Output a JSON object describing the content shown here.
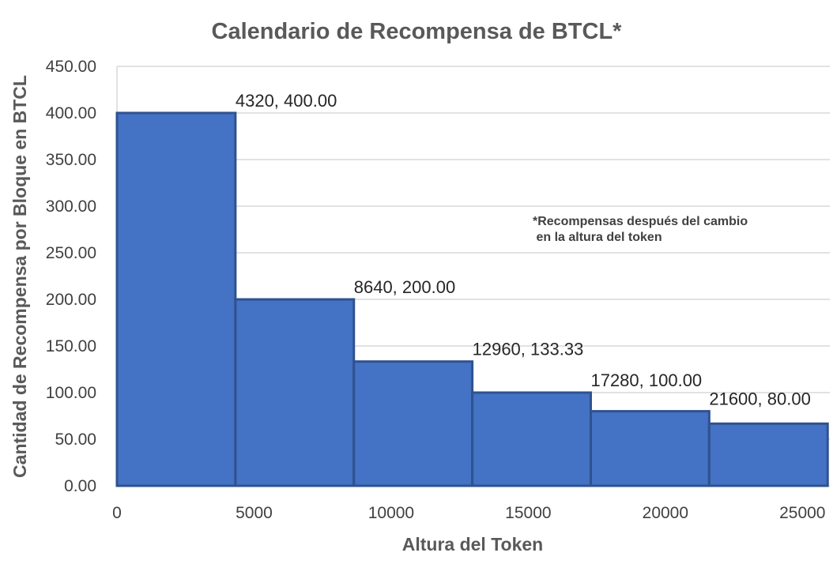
{
  "chart_data": {
    "type": "bar",
    "title": "Calendario de Recompensa de BTCL*",
    "xlabel": "Altura del Token",
    "ylabel": "Cantidad de Recompensa por Bloque en BTCL",
    "xlim": [
      0,
      26000
    ],
    "ylim": [
      0,
      450
    ],
    "x_ticks": [
      "0",
      "5000",
      "10000",
      "15000",
      "20000",
      "25000"
    ],
    "y_ticks": [
      "0.00",
      "50.00",
      "100.00",
      "150.00",
      "200.00",
      "250.00",
      "300.00",
      "350.00",
      "400.00",
      "450.00"
    ],
    "grid": true,
    "bars": [
      {
        "x_start": 0,
        "x_end": 4320,
        "value": 400,
        "label": "4320, 400.00"
      },
      {
        "x_start": 4320,
        "x_end": 8640,
        "value": 200,
        "label": "8640, 200.00"
      },
      {
        "x_start": 8640,
        "x_end": 12960,
        "value": 133.33,
        "label": "12960, 133.33"
      },
      {
        "x_start": 12960,
        "x_end": 17280,
        "value": 100,
        "label": "17280, 100.00"
      },
      {
        "x_start": 17280,
        "x_end": 21600,
        "value": 80,
        "label": "21600, 80.00"
      },
      {
        "x_start": 21600,
        "x_end": 25920,
        "value": 66.67,
        "label": ""
      }
    ],
    "annotation": "*Recompensas después del cambio\n en la altura del token",
    "colors": {
      "bar_fill": "#4472C4",
      "bar_stroke": "#2F528F",
      "grid": "#D9D9D9"
    }
  }
}
